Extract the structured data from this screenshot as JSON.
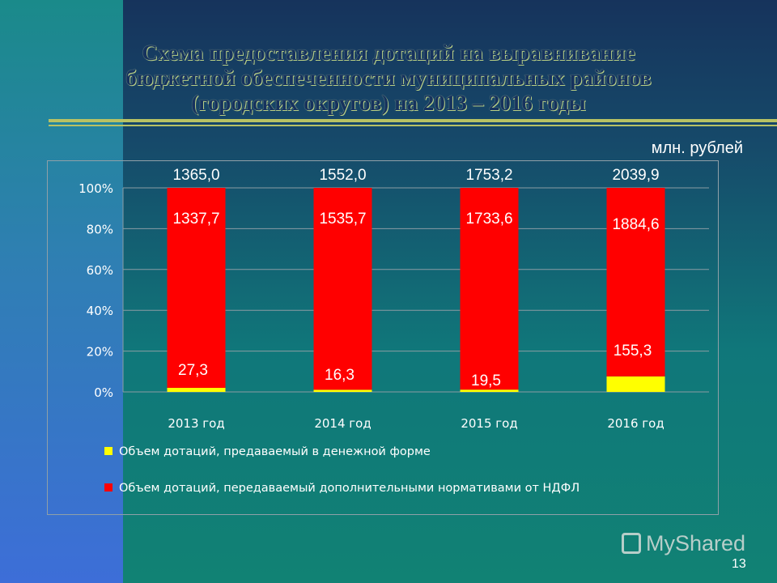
{
  "slide": {
    "title_lines": [
      "Схема предоставления дотаций на выравнивание",
      "бюджетной обеспеченности муниципальных районов",
      "(городских округов) на 2013 – 2016 годы"
    ],
    "unit": "млн. рублей",
    "page_number": "13",
    "logo_text": "MyShared",
    "colors": {
      "background": "#0f6e78",
      "title": "#16325e",
      "rule": "#b8c264"
    }
  },
  "chart_data": {
    "type": "bar",
    "stacked": "percent",
    "categories": [
      "2013 год",
      "2014 год",
      "2015 год",
      "2016 год"
    ],
    "totals": [
      "1365,0",
      "1552,0",
      "1753,2",
      "2039,9"
    ],
    "series": [
      {
        "name": "Объем дотаций, предаваемый в денежной форме",
        "values": [
          27.3,
          16.3,
          19.5,
          155.3
        ],
        "labels": [
          "27,3",
          "16,3",
          "19,5",
          "155,3"
        ],
        "color": "#ffff00"
      },
      {
        "name": "Объем дотаций, передаваемый дополнительными нормативами от НДФЛ",
        "values": [
          1337.7,
          1535.7,
          1733.6,
          1884.6
        ],
        "labels": [
          "1337,7",
          "1535,7",
          "1733,6",
          "1884,6"
        ],
        "color": "#ff0000"
      }
    ],
    "yticks": [
      "0%",
      "20%",
      "40%",
      "60%",
      "80%",
      "100%"
    ],
    "ylim": [
      0,
      100
    ],
    "grid": true,
    "legend_position": "bottom"
  }
}
